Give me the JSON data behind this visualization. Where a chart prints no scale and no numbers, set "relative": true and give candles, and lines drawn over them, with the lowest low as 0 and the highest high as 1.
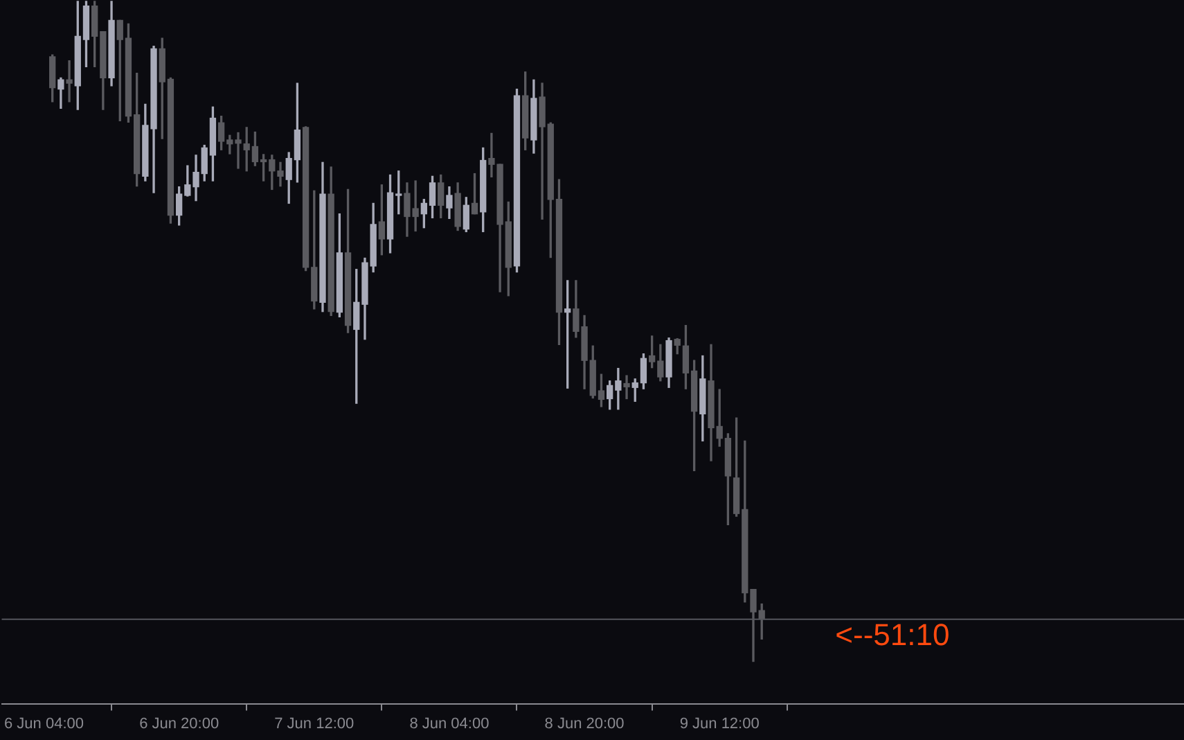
{
  "chart_data": {
    "type": "candlestick",
    "relative": true,
    "tick_labels": "x",
    "grid": false,
    "categories": [
      "6 Jun 04:00",
      null,
      null,
      null,
      null,
      null,
      null,
      null,
      null,
      null,
      null,
      null,
      null,
      null,
      null,
      null,
      "6 Jun 20:00",
      null,
      null,
      null,
      null,
      null,
      null,
      null,
      null,
      null,
      null,
      null,
      null,
      null,
      null,
      null,
      "7 Jun 12:00",
      null,
      null,
      null,
      null,
      null,
      null,
      null,
      null,
      null,
      null,
      null,
      null,
      null,
      null,
      null,
      "8 Jun 04:00",
      null,
      null,
      null,
      null,
      null,
      null,
      null,
      null,
      null,
      null,
      null,
      null,
      null,
      null,
      null,
      "8 Jun 20:00",
      null,
      null,
      null,
      null,
      null,
      null,
      null,
      null,
      null,
      null,
      null,
      null,
      null,
      null,
      null,
      "9 Jun 12:00",
      null,
      null,
      null,
      null,
      null
    ],
    "ohlc": [
      null,
      [
        0.916,
        0.919,
        0.848,
        0.869
      ],
      [
        0.867,
        0.884,
        0.838,
        0.881
      ],
      [
        0.881,
        0.91,
        0.848,
        0.876
      ],
      [
        0.872,
        1.0,
        0.836,
        0.947
      ],
      [
        0.942,
        1.0,
        0.901,
        0.993
      ],
      [
        0.993,
        1.0,
        0.901,
        0.947
      ],
      [
        0.954,
        0.954,
        0.836,
        0.884
      ],
      [
        0.884,
        1.0,
        0.872,
        0.971
      ],
      [
        0.971,
        0.971,
        0.819,
        0.942
      ],
      [
        0.944,
        0.966,
        0.817,
        0.826
      ],
      [
        0.828,
        0.891,
        0.72,
        0.739
      ],
      [
        0.735,
        0.844,
        0.728,
        0.812
      ],
      [
        0.807,
        0.932,
        0.71,
        0.928
      ],
      [
        0.928,
        0.944,
        0.792,
        0.878
      ],
      [
        0.882,
        0.884,
        0.664,
        0.676
      ],
      [
        0.676,
        0.719,
        0.661,
        0.708
      ],
      [
        0.706,
        0.751,
        0.705,
        0.722
      ],
      [
        0.719,
        0.767,
        0.698,
        0.741
      ],
      [
        0.739,
        0.782,
        0.728,
        0.778
      ],
      [
        0.767,
        0.84,
        0.728,
        0.823
      ],
      [
        0.816,
        0.826,
        0.775,
        0.788
      ],
      [
        0.79,
        0.797,
        0.769,
        0.784
      ],
      [
        0.79,
        0.801,
        0.747,
        0.785
      ],
      [
        0.784,
        0.809,
        0.743,
        0.775
      ],
      [
        0.78,
        0.802,
        0.751,
        0.757
      ],
      [
        0.76,
        0.768,
        0.728,
        0.757
      ],
      [
        0.76,
        0.767,
        0.715,
        0.743
      ],
      [
        0.743,
        0.756,
        0.72,
        0.735
      ],
      [
        0.73,
        0.771,
        0.694,
        0.762
      ],
      [
        0.76,
        0.876,
        0.726,
        0.805
      ],
      [
        0.809,
        0.81,
        0.592,
        0.597
      ],
      [
        0.597,
        0.713,
        0.534,
        0.546
      ],
      [
        0.544,
        0.756,
        0.53,
        0.708
      ],
      [
        0.708,
        0.749,
        0.524,
        0.53
      ],
      [
        0.529,
        0.678,
        0.522,
        0.619
      ],
      [
        0.619,
        0.715,
        0.498,
        0.509
      ],
      [
        0.503,
        0.594,
        0.391,
        0.544
      ],
      [
        0.541,
        0.611,
        0.488,
        0.604
      ],
      [
        0.599,
        0.694,
        0.59,
        0.662
      ],
      [
        0.666,
        0.722,
        0.616,
        0.64
      ],
      [
        0.64,
        0.737,
        0.619,
        0.71
      ],
      [
        0.706,
        0.743,
        0.678,
        0.708
      ],
      [
        0.709,
        0.725,
        0.644,
        0.674
      ],
      [
        0.686,
        0.728,
        0.652,
        0.674
      ],
      [
        0.678,
        0.7,
        0.657,
        0.694
      ],
      [
        0.691,
        0.735,
        0.672,
        0.725
      ],
      [
        0.725,
        0.737,
        0.672,
        0.691
      ],
      [
        0.687,
        0.719,
        0.671,
        0.706
      ],
      [
        0.709,
        0.725,
        0.653,
        0.659
      ],
      [
        0.655,
        0.703,
        0.651,
        0.691
      ],
      [
        0.694,
        0.739,
        0.678,
        0.678
      ],
      [
        0.681,
        0.778,
        0.651,
        0.759
      ],
      [
        0.762,
        0.8,
        0.734,
        0.753
      ],
      [
        0.753,
        0.753,
        0.56,
        0.662
      ],
      [
        0.666,
        0.696,
        0.554,
        0.597
      ],
      [
        0.599,
        0.867,
        0.59,
        0.857
      ],
      [
        0.857,
        0.893,
        0.775,
        0.793
      ],
      [
        0.79,
        0.881,
        0.77,
        0.853
      ],
      [
        0.855,
        0.876,
        0.67,
        0.81
      ],
      [
        0.814,
        0.816,
        0.612,
        0.7
      ],
      [
        0.7,
        0.73,
        0.48,
        0.529
      ],
      [
        0.529,
        0.577,
        0.414,
        0.534
      ],
      [
        0.534,
        0.577,
        0.491,
        0.5
      ],
      [
        0.507,
        0.524,
        0.413,
        0.456
      ],
      [
        0.456,
        0.478,
        0.399,
        0.403
      ],
      [
        0.41,
        0.435,
        0.386,
        0.397
      ],
      [
        0.398,
        0.425,
        0.382,
        0.418
      ],
      [
        0.411,
        0.444,
        0.382,
        0.425
      ],
      [
        0.421,
        0.433,
        0.398,
        0.416
      ],
      [
        0.415,
        0.428,
        0.394,
        0.422
      ],
      [
        0.422,
        0.466,
        0.413,
        0.459
      ],
      [
        0.463,
        0.493,
        0.445,
        0.454
      ],
      [
        0.455,
        0.48,
        0.425,
        0.431
      ],
      [
        0.431,
        0.49,
        0.415,
        0.486
      ],
      [
        0.488,
        0.489,
        0.466,
        0.479
      ],
      [
        0.478,
        0.509,
        0.413,
        0.437
      ],
      [
        0.44,
        0.456,
        0.289,
        0.379
      ],
      [
        0.375,
        0.463,
        0.334,
        0.428
      ],
      [
        0.425,
        0.48,
        0.304,
        0.354
      ],
      [
        0.356,
        0.412,
        0.326,
        0.338
      ],
      [
        0.338,
        0.345,
        0.207,
        0.281
      ],
      [
        0.278,
        0.369,
        0.22,
        0.224
      ],
      [
        0.23,
        0.334,
        0.09,
        0.104
      ],
      [
        0.109,
        0.109,
        0,
        0.075
      ],
      [
        0.077,
        0.087,
        0.034,
        0.065
      ]
    ],
    "ref_lines": [
      {
        "axis": "y",
        "value": 0.065
      }
    ],
    "annotations": [
      "<--51:10"
    ]
  }
}
